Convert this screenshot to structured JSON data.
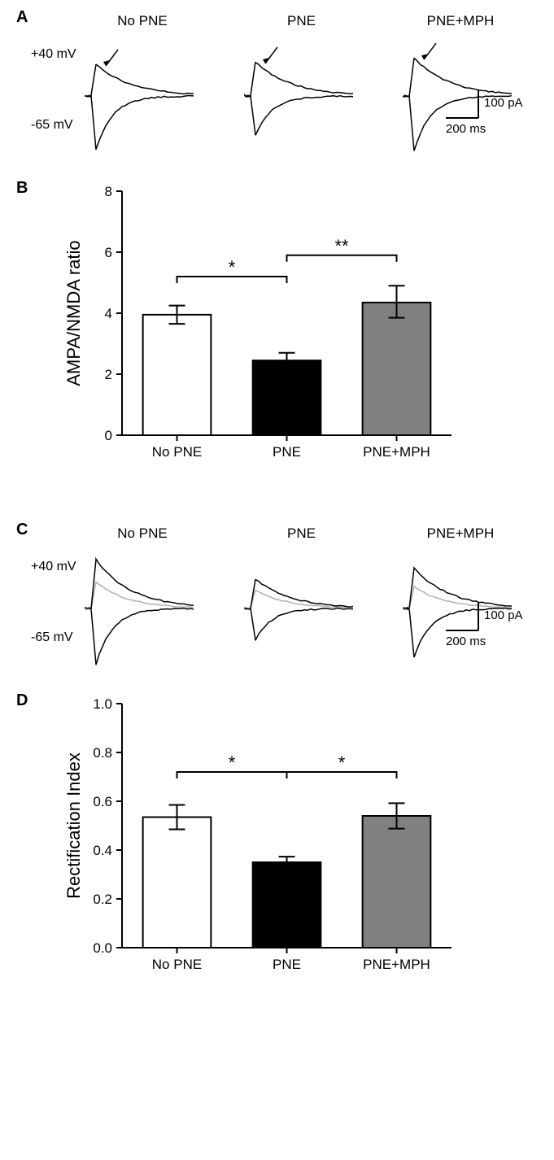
{
  "panelA": {
    "label": "A",
    "groups": [
      "No PNE",
      "PNE",
      "PNE+MPH"
    ],
    "volt_top": "+40 mV",
    "volt_bottom": "-65 mV",
    "scale_v": "100 pA",
    "scale_h": "200 ms",
    "traces": {
      "No PNE": {
        "up_peak": 65,
        "down_peak": 110
      },
      "PNE": {
        "up_peak": 70,
        "down_peak": 80
      },
      "PNE+MPH": {
        "up_peak": 78,
        "down_peak": 112
      }
    },
    "trace_color": "#000000",
    "bg": "#ffffff"
  },
  "panelB": {
    "label": "B",
    "ylabel": "AMPA/NMDA ratio",
    "ylim": [
      0,
      8
    ],
    "ytick_step": 2,
    "categories": [
      "No PNE",
      "PNE",
      "PNE+MPH"
    ],
    "values": [
      3.95,
      2.45,
      4.35
    ],
    "err_upper": [
      0.3,
      0.25,
      0.55
    ],
    "err_lower": [
      0.3,
      0.25,
      0.5
    ],
    "bar_fill": [
      "#ffffff",
      "#000000",
      "#808080"
    ],
    "bar_stroke": "#000000",
    "bar_width": 0.62,
    "sig": [
      {
        "from": 0,
        "to": 1,
        "text": "*",
        "y": 5.2
      },
      {
        "from": 1,
        "to": 2,
        "text": "**",
        "y": 5.9
      }
    ],
    "label_fontsize": 22,
    "tick_fontsize": 17,
    "axis_color": "#000000",
    "bg": "#ffffff"
  },
  "panelC": {
    "label": "C",
    "groups": [
      "No PNE",
      "PNE",
      "PNE+MPH"
    ],
    "volt_top": "+40 mV",
    "volt_bottom": "-65 mV",
    "scale_v": "100 pA",
    "scale_h": "200 ms",
    "traces": {
      "No PNE": {
        "up_peak": 100,
        "mid_up": 55,
        "down_peak": 115
      },
      "PNE": {
        "up_peak": 60,
        "mid_up": 38,
        "down_peak": 65
      },
      "PNE+MPH": {
        "up_peak": 83,
        "mid_up": 45,
        "down_peak": 100
      }
    },
    "main_color": "#000000",
    "mid_color": "#b0b0b0",
    "bg": "#ffffff"
  },
  "panelD": {
    "label": "D",
    "ylabel": "Rectification Index",
    "ylim": [
      0.0,
      1.0
    ],
    "ytick_step": 0.2,
    "categories": [
      "No PNE",
      "PNE",
      "PNE+MPH"
    ],
    "values": [
      0.535,
      0.35,
      0.54
    ],
    "err_upper": [
      0.05,
      0.023,
      0.052
    ],
    "err_lower": [
      0.05,
      0.023,
      0.052
    ],
    "bar_fill": [
      "#ffffff",
      "#000000",
      "#808080"
    ],
    "bar_stroke": "#000000",
    "bar_width": 0.62,
    "sig": [
      {
        "from": 0,
        "to": 1,
        "text": "*",
        "y": 0.72
      },
      {
        "from": 1,
        "to": 2,
        "text": "*",
        "y": 0.72
      }
    ],
    "label_fontsize": 22,
    "tick_fontsize": 17,
    "axis_color": "#000000",
    "bg": "#ffffff"
  }
}
